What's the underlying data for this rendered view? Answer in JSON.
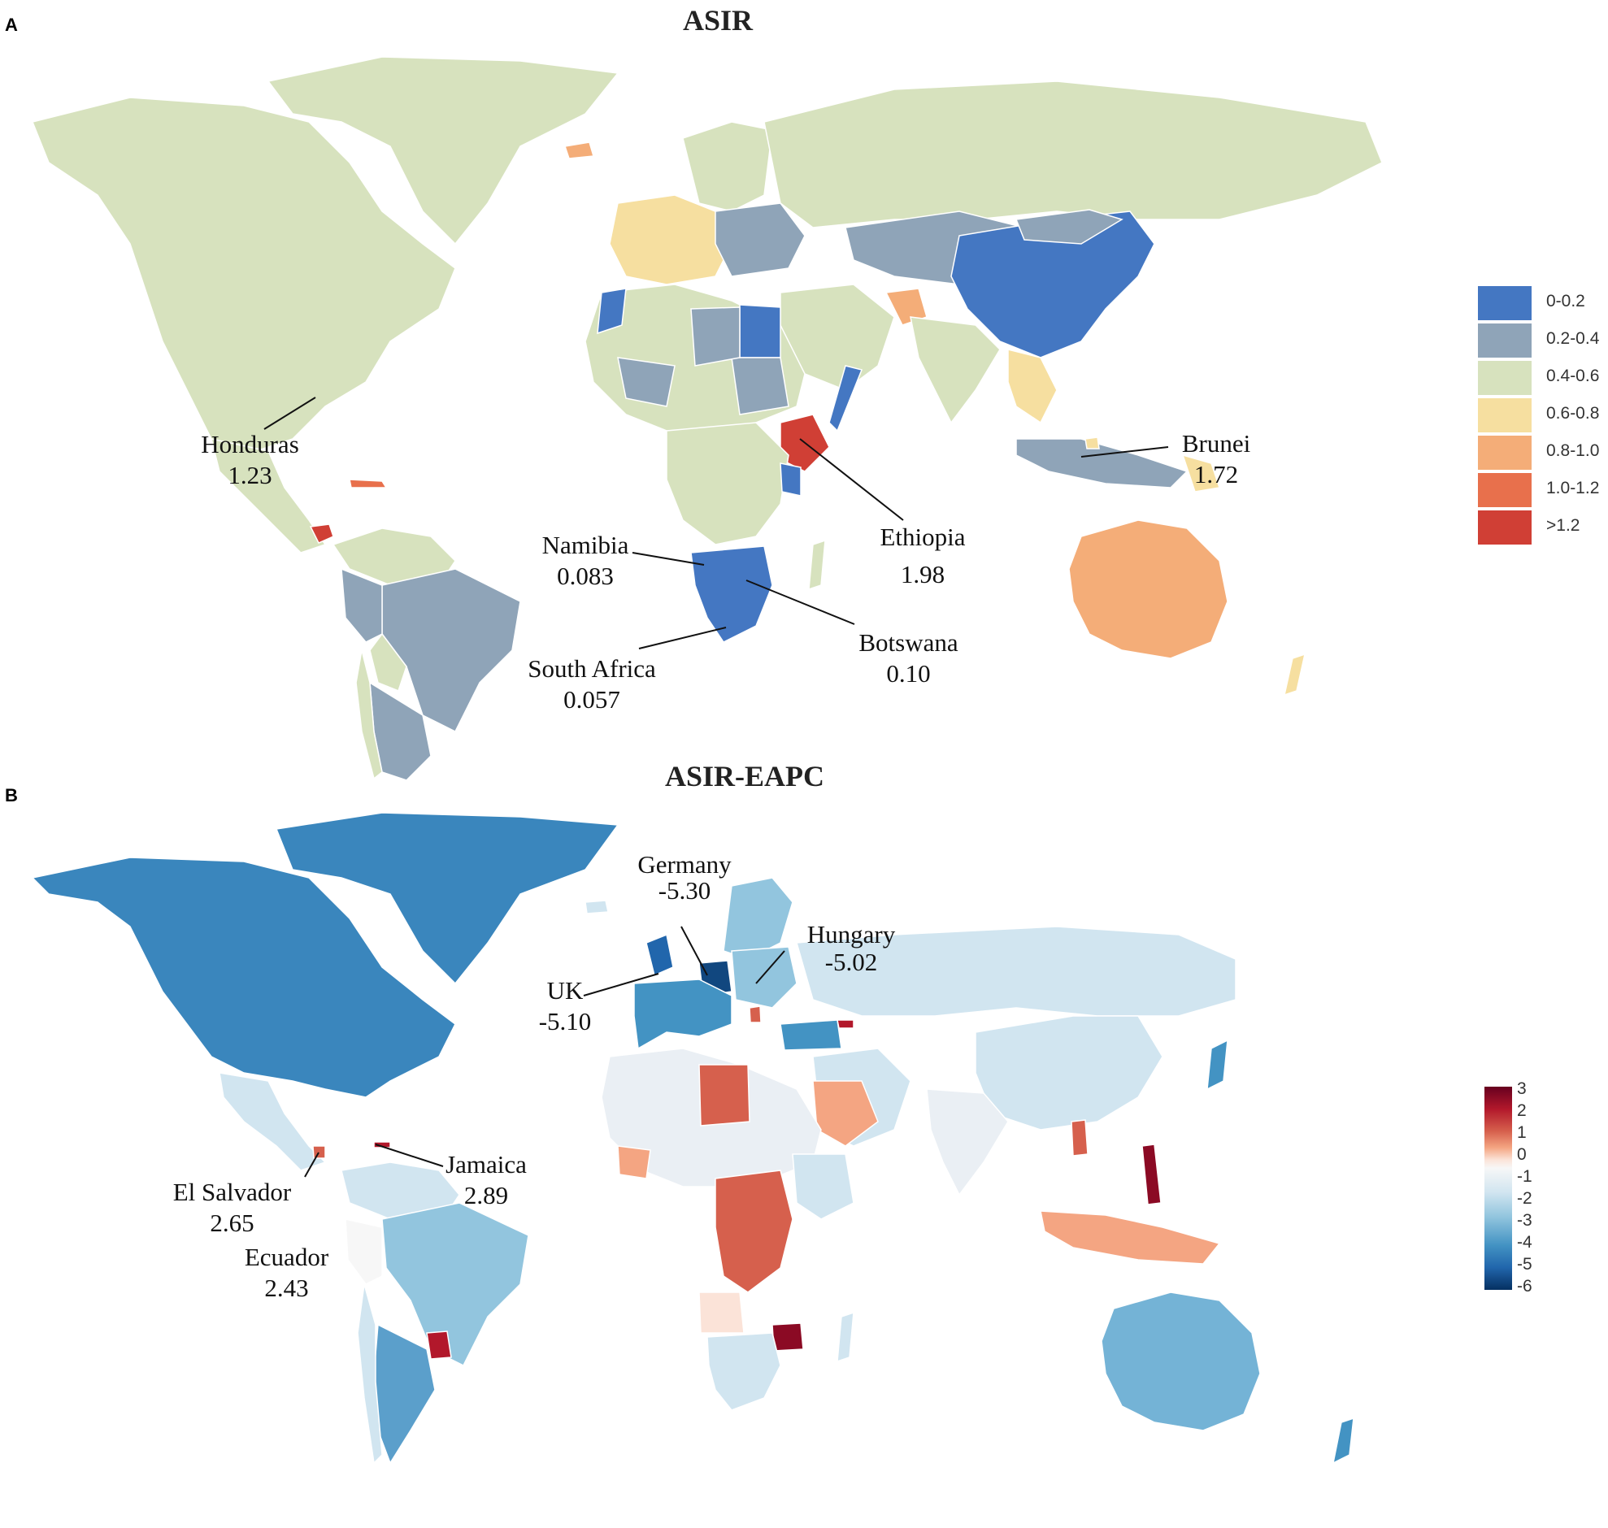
{
  "panel_a": {
    "letter": "A",
    "title": "ASIR",
    "legend": [
      {
        "label": "0-0.2",
        "color": "#4477c2"
      },
      {
        "label": "0.2-0.4",
        "color": "#8fa4b8"
      },
      {
        "label": "0.4-0.6",
        "color": "#d7e2be"
      },
      {
        "label": "0.6-0.8",
        "color": "#f6dfa0"
      },
      {
        "label": "0.8-1.0",
        "color": "#f4ad78"
      },
      {
        "label": "1.0-1.2",
        "color": "#e8704c"
      },
      {
        "label": ">1.2",
        "color": "#d03f35"
      }
    ],
    "annotations": [
      {
        "name": "Honduras",
        "value": "1.23"
      },
      {
        "name": "Brunei",
        "value": "1.72"
      },
      {
        "name": "Namibia",
        "value": "0.083"
      },
      {
        "name": "Ethiopia",
        "value": "1.98"
      },
      {
        "name": "Botswana",
        "value": "0.10"
      },
      {
        "name": "South Africa",
        "value": "0.057"
      }
    ]
  },
  "panel_b": {
    "letter": "B",
    "title": "ASIR-EAPC",
    "colorbar_ticks": [
      "3",
      "2",
      "1",
      "0",
      "-1",
      "-2",
      "-3",
      "-4",
      "-5",
      "-6"
    ],
    "annotations": [
      {
        "name": "Germany",
        "value": "-5.30"
      },
      {
        "name": "Hungary",
        "value": "-5.02"
      },
      {
        "name": "UK",
        "value": "-5.10"
      },
      {
        "name": "El Salvador",
        "value": "2.65"
      },
      {
        "name": "Jamaica",
        "value": "2.89"
      },
      {
        "name": "Ecuador",
        "value": "2.43"
      }
    ]
  }
}
